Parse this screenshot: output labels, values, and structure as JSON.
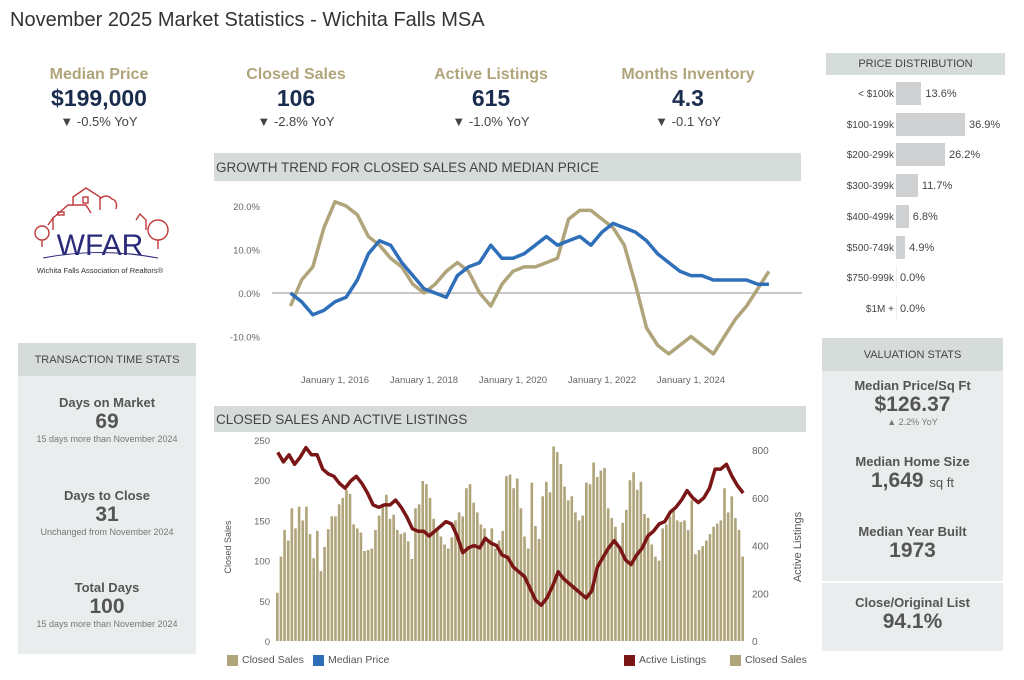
{
  "title": "November 2025 Market Statistics - Wichita Falls MSA",
  "kpis": [
    {
      "label": "Median Price",
      "value": "$199,000",
      "yoy": "▼ -0.5% YoY"
    },
    {
      "label": "Closed Sales",
      "value": "106",
      "yoy": "▼ -2.8% YoY"
    },
    {
      "label": "Active Listings",
      "value": "615",
      "yoy": "▼ -1.0% YoY"
    },
    {
      "label": "Months Inventory",
      "value": "4.3",
      "yoy": "▼ -0.1 YoY"
    }
  ],
  "logo": {
    "text": "WFAR",
    "tagline": "Wichita Falls Association of Realtors®",
    "colors": {
      "house": "#c0393b",
      "text": "#2a2a7a"
    }
  },
  "transaction": {
    "header": "TRANSACTION TIME STATS",
    "items": [
      {
        "label": "Days on Market",
        "value": "69",
        "note": "15 days more than November 2024"
      },
      {
        "label": "Days to Close",
        "value": "31",
        "note": "Unchanged from November 2024"
      },
      {
        "label": "Total Days",
        "value": "100",
        "note": "15 days more than November 2024"
      }
    ]
  },
  "valuation": {
    "header": "VALUATION STATS",
    "items": [
      {
        "label": "Median Price/Sq Ft",
        "value": "$126.37",
        "note": "▲ 2.2% YoY"
      },
      {
        "label": "Median Home Size",
        "value": "1,649",
        "unit": "sq ft"
      },
      {
        "label": "Median Year Built",
        "value": "1973"
      },
      {
        "label": "Close/Original List",
        "value": "94.1%"
      }
    ]
  },
  "colors": {
    "closed_sales": "#b0a47a",
    "median_price": "#2f6fba",
    "active_listings": "#7a1616",
    "header_bg": "#d6dcd9",
    "panel_bg": "#e9eded",
    "kpi_value": "#1b2d4f"
  },
  "chart_data": [
    {
      "type": "bar",
      "title": "PRICE DISTRIBUTION",
      "categories": [
        "< $100k",
        "$100-199k",
        "$200-299k",
        "$300-399k",
        "$400-499k",
        "$500-749k",
        "$750-999k",
        "$1M +"
      ],
      "values": [
        13.6,
        36.9,
        26.2,
        11.7,
        6.8,
        4.9,
        0.0,
        0.0
      ],
      "labels": [
        "13.6%",
        "36.9%",
        "26.2%",
        "11.7%",
        "6.8%",
        "4.9%",
        "0.0%",
        "0.0%"
      ]
    },
    {
      "type": "line",
      "title": "GROWTH TREND FOR CLOSED SALES AND MEDIAN PRICE",
      "ylim": [
        -12,
        23
      ],
      "yticks": [
        20,
        10,
        0,
        -10
      ],
      "ytick_labels": [
        "20.0%",
        "10.0%",
        "0.0%",
        "-10.0%"
      ],
      "xlim": [
        "2014-12",
        "2025-12"
      ],
      "xticks": [
        "2016-01",
        "2018-01",
        "2020-01",
        "2022-01",
        "2024-01"
      ],
      "xtick_labels": [
        "January 1, 2016",
        "January 1, 2018",
        "January 1, 2020",
        "January 1, 2022",
        "January 1, 2024"
      ],
      "x": [
        "2015-01",
        "2015-04",
        "2015-07",
        "2015-10",
        "2016-01",
        "2016-04",
        "2016-07",
        "2016-10",
        "2017-01",
        "2017-04",
        "2017-07",
        "2017-10",
        "2018-01",
        "2018-04",
        "2018-07",
        "2018-10",
        "2019-01",
        "2019-04",
        "2019-07",
        "2019-10",
        "2020-01",
        "2020-04",
        "2020-07",
        "2020-10",
        "2021-01",
        "2021-04",
        "2021-07",
        "2021-10",
        "2022-01",
        "2022-04",
        "2022-07",
        "2022-10",
        "2023-01",
        "2023-04",
        "2023-07",
        "2023-10",
        "2024-01",
        "2024-04",
        "2024-07",
        "2024-10",
        "2025-01",
        "2025-04",
        "2025-07",
        "2025-10"
      ],
      "series": [
        {
          "name": "Closed Sales",
          "values": [
            -3,
            3,
            6,
            15,
            21,
            20,
            18,
            13,
            11,
            8,
            6,
            2,
            0,
            2,
            5,
            7,
            5,
            0,
            -3,
            2,
            5,
            6,
            6,
            7,
            8,
            17,
            19,
            19,
            17,
            15,
            11,
            2,
            -8,
            -12,
            -14,
            -12,
            -10,
            -12,
            -14,
            -10,
            -6,
            -3,
            1,
            5
          ]
        },
        {
          "name": "Median Price",
          "values": [
            0,
            -2,
            -5,
            -4,
            -2,
            -1,
            3,
            9,
            12,
            11,
            7,
            4,
            1,
            0,
            -1,
            4,
            6,
            7,
            11,
            8,
            8,
            9,
            11,
            13,
            11,
            12,
            13,
            11,
            14,
            16,
            15,
            14,
            12,
            9,
            7,
            5,
            4,
            4,
            3,
            3,
            3,
            3,
            2,
            2
          ]
        }
      ],
      "legend": [
        "Closed Sales",
        "Median Price"
      ]
    },
    {
      "type": "bar+line",
      "title": "CLOSED SALES AND ACTIVE LISTINGS",
      "ylabel": "Closed Sales",
      "ylim": [
        0,
        250
      ],
      "yticks": [
        0,
        50,
        100,
        150,
        200,
        250
      ],
      "y2label": "Active Listings",
      "y2lim": [
        0,
        850
      ],
      "y2ticks": [
        0,
        200,
        400,
        600,
        800
      ],
      "closed_sales": [
        60,
        105,
        138,
        125,
        165,
        140,
        167,
        150,
        167,
        133,
        103,
        137,
        87,
        117,
        139,
        155,
        155,
        170,
        178,
        188,
        183,
        145,
        140,
        135,
        112,
        113,
        115,
        138,
        156,
        168,
        182,
        152,
        157,
        138,
        133,
        135,
        124,
        102,
        165,
        170,
        199,
        195,
        178,
        152,
        140,
        130,
        120,
        115,
        129,
        150,
        160,
        155,
        190,
        195,
        172,
        160,
        145,
        140,
        125,
        140,
        115,
        125,
        137,
        205,
        207,
        190,
        202,
        165,
        130,
        115,
        197,
        143,
        127,
        180,
        198,
        185,
        242,
        235,
        220,
        192,
        175,
        180,
        160,
        150,
        156,
        197,
        195,
        222,
        204,
        212,
        215,
        165,
        153,
        142,
        115,
        147,
        163,
        200,
        210,
        188,
        198,
        158,
        153,
        120,
        105,
        100,
        140,
        145,
        155,
        165,
        150,
        148,
        150,
        138,
        175,
        108,
        113,
        118,
        125,
        133,
        142,
        146,
        150,
        190,
        160,
        180,
        153,
        138,
        105
      ],
      "active_listings": [
        790,
        750,
        780,
        740,
        770,
        810,
        780,
        780,
        720,
        700,
        690,
        660,
        640,
        670,
        690,
        660,
        620,
        570,
        560,
        570,
        570,
        590,
        560,
        520,
        470,
        460,
        460,
        440,
        460,
        480,
        500,
        490,
        440,
        370,
        390,
        400,
        390,
        430,
        410,
        400,
        360,
        350,
        310,
        290,
        270,
        220,
        170,
        150,
        180,
        230,
        290,
        260,
        240,
        220,
        200,
        180,
        210,
        310,
        350,
        390,
        420,
        390,
        340,
        320,
        360,
        390,
        440,
        460,
        490,
        500,
        540,
        560,
        590,
        630,
        600,
        580,
        600,
        640,
        720,
        720,
        740,
        690,
        650,
        620
      ],
      "legend": [
        "Active Listings",
        "Closed Sales"
      ]
    }
  ]
}
